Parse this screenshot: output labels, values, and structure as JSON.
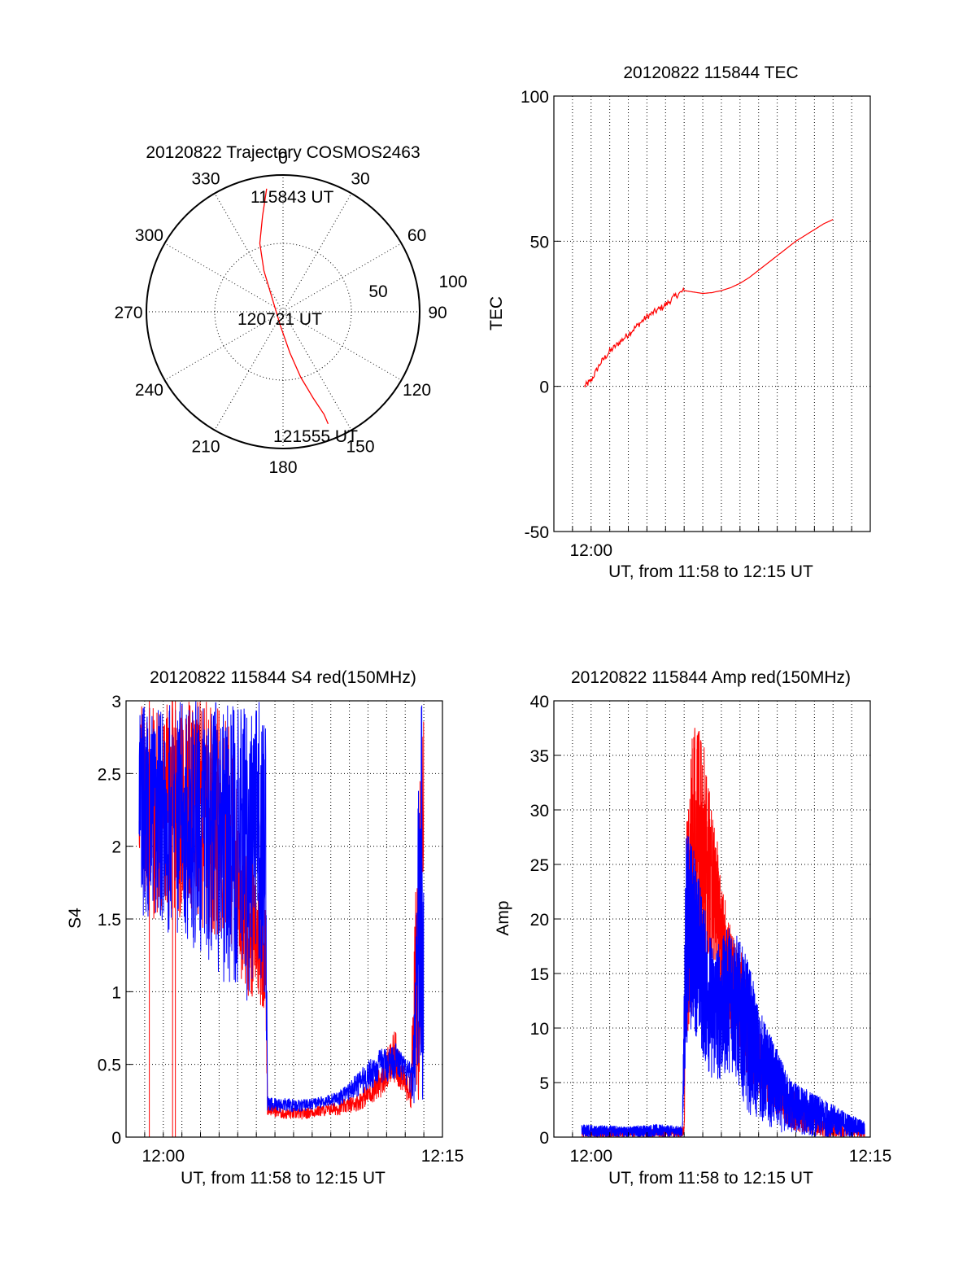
{
  "colors": {
    "red": "#ff0000",
    "blue": "#0000ff",
    "axis": "#000000"
  },
  "chart_data": [
    {
      "type": "polar",
      "title": "20120822 Trajectory COSMOS2463",
      "azimuth_labels": [
        "0",
        "30",
        "60",
        "90",
        "120",
        "150",
        "180",
        "210",
        "240",
        "270",
        "300",
        "330"
      ],
      "ring_labels": [
        "50",
        "100"
      ],
      "rlim": [
        0,
        100
      ],
      "series": [
        {
          "color": "#ff0000",
          "points": [
            [
              -12,
              90
            ],
            [
              -15,
              70
            ],
            [
              -17,
              50
            ],
            [
              -14,
              30
            ],
            [
              -8,
              10
            ],
            [
              -2,
              -10
            ],
            [
              5,
              -30
            ],
            [
              13,
              -48
            ],
            [
              22,
              -63
            ],
            [
              30,
              -75
            ],
            [
              33,
              -82
            ]
          ]
        }
      ],
      "annotations": [
        {
          "text": "115843 UT",
          "az": 10,
          "r": 90
        },
        {
          "text": "120721 UT",
          "az": 0,
          "r": 0
        },
        {
          "text": "121555 UT",
          "az": 170,
          "r": 92
        }
      ]
    },
    {
      "type": "line",
      "title": "20120822 115844 TEC",
      "ylabel": "TEC",
      "xlabel": "UT, from 11:58 to 12:15 UT",
      "xlim": [
        0,
        17
      ],
      "ylim": [
        -50,
        100
      ],
      "yticks": [
        "-50",
        "0",
        "50",
        "100"
      ],
      "xtick_labels": [
        {
          "x": 2,
          "label": "12:00"
        }
      ],
      "series": [
        {
          "color": "#ff0000",
          "points": [
            [
              1.65,
              0
            ],
            [
              2,
              2
            ],
            [
              2.5,
              8
            ],
            [
              3,
              12
            ],
            [
              3.5,
              15
            ],
            [
              4,
              18
            ],
            [
              4.5,
              21
            ],
            [
              5,
              24
            ],
            [
              5.5,
              26
            ],
            [
              6,
              28
            ],
            [
              6.5,
              31
            ],
            [
              7,
              33
            ],
            [
              7.5,
              32.5
            ],
            [
              8,
              32
            ],
            [
              8.5,
              32.3
            ],
            [
              9,
              33
            ],
            [
              9.5,
              34
            ],
            [
              10,
              35.5
            ],
            [
              10.5,
              37.5
            ],
            [
              11,
              40
            ],
            [
              11.5,
              42.5
            ],
            [
              12,
              45
            ],
            [
              12.5,
              47.5
            ],
            [
              13,
              50
            ],
            [
              13.5,
              52
            ],
            [
              14,
              54
            ],
            [
              14.5,
              56
            ],
            [
              15,
              57.5
            ]
          ]
        }
      ]
    },
    {
      "type": "line",
      "title": "20120822 115844 S4 red(150MHz)",
      "ylabel": "S4",
      "xlabel": "UT, from 11:58 to 12:15 UT",
      "xlim": [
        0,
        17
      ],
      "ylim": [
        0,
        3
      ],
      "yticks": [
        "0",
        "0.5",
        "1",
        "1.5",
        "2",
        "2.5",
        "3"
      ],
      "xtick_labels": [
        {
          "x": 2,
          "label": "12:00"
        },
        {
          "x": 17,
          "label": "12:15"
        }
      ],
      "series": [
        {
          "color": "#ff0000",
          "envelope": [
            [
              0.7,
              1.8,
              3
            ],
            [
              1.5,
              1.4,
              3
            ],
            [
              2.5,
              1.5,
              3
            ],
            [
              3.5,
              1.5,
              3
            ],
            [
              4.5,
              1.4,
              3
            ],
            [
              5.5,
              1.3,
              2.9
            ],
            [
              6.2,
              1.0,
              2.2
            ],
            [
              7.0,
              0.9,
              1.8
            ],
            [
              7.5,
              0.85,
              1.6
            ],
            [
              7.6,
              0.15,
              0.25
            ],
            [
              8.5,
              0.12,
              0.2
            ],
            [
              9.5,
              0.12,
              0.2
            ],
            [
              10.5,
              0.14,
              0.22
            ],
            [
              11.5,
              0.15,
              0.25
            ],
            [
              12.5,
              0.18,
              0.3
            ],
            [
              13.5,
              0.25,
              0.45
            ],
            [
              14.5,
              0.35,
              0.75
            ],
            [
              14.9,
              0.28,
              0.5
            ],
            [
              15.3,
              0.2,
              0.4
            ],
            [
              15.8,
              0.2,
              3
            ],
            [
              16.0,
              2.0,
              3
            ]
          ]
        },
        {
          "color": "#0000ff",
          "envelope": [
            [
              0.7,
              1.5,
              3
            ],
            [
              1.5,
              1.4,
              3
            ],
            [
              2.5,
              1.4,
              3
            ],
            [
              3.5,
              1.3,
              3
            ],
            [
              4.5,
              1.2,
              3
            ],
            [
              5.5,
              1.0,
              3
            ],
            [
              6.5,
              0.9,
              3
            ],
            [
              7.5,
              0.9,
              3
            ],
            [
              7.6,
              0.17,
              0.28
            ],
            [
              8.5,
              0.17,
              0.27
            ],
            [
              9.5,
              0.17,
              0.26
            ],
            [
              10.5,
              0.2,
              0.28
            ],
            [
              11.5,
              0.22,
              0.32
            ],
            [
              12.5,
              0.28,
              0.45
            ],
            [
              13.5,
              0.35,
              0.6
            ],
            [
              14.5,
              0.4,
              0.65
            ],
            [
              15.0,
              0.35,
              0.55
            ],
            [
              15.4,
              0.25,
              0.5
            ],
            [
              15.8,
              0.1,
              3
            ],
            [
              16.0,
              0.0,
              3
            ]
          ]
        }
      ]
    },
    {
      "type": "line",
      "title": "20120822 115844 Amp red(150MHz)",
      "ylabel": "Amp",
      "xlabel": "UT, from 11:58 to 12:15 UT",
      "xlim": [
        0,
        17
      ],
      "ylim": [
        0,
        40
      ],
      "yticks": [
        "0",
        "5",
        "10",
        "15",
        "20",
        "25",
        "30",
        "35",
        "40"
      ],
      "xtick_labels": [
        {
          "x": 2,
          "label": "12:00"
        },
        {
          "x": 17,
          "label": "12:15"
        }
      ],
      "series": [
        {
          "color": "#ff0000",
          "envelope": [
            [
              1.5,
              0,
              0.8
            ],
            [
              6.5,
              0,
              0.8
            ],
            [
              7.0,
              0,
              1
            ],
            [
              7.1,
              8,
              30
            ],
            [
              7.5,
              12,
              38
            ],
            [
              8.0,
              15,
              37
            ],
            [
              8.5,
              16,
              30
            ],
            [
              9.0,
              12,
              25
            ],
            [
              9.5,
              9,
              19
            ],
            [
              10.0,
              8,
              18
            ],
            [
              10.5,
              5,
              12
            ],
            [
              11.0,
              4,
              10
            ],
            [
              11.5,
              3,
              8
            ],
            [
              12.0,
              2,
              6
            ],
            [
              12.5,
              1,
              5
            ],
            [
              13.0,
              0.5,
              4
            ],
            [
              13.5,
              0.3,
              3
            ],
            [
              14.5,
              0,
              1.5
            ],
            [
              16.7,
              0,
              1
            ]
          ]
        },
        {
          "color": "#0000ff",
          "envelope": [
            [
              1.5,
              0,
              1.2
            ],
            [
              4.0,
              0,
              1
            ],
            [
              5.5,
              0,
              1.2
            ],
            [
              6.9,
              0,
              1
            ],
            [
              7.1,
              8,
              28
            ],
            [
              7.5,
              10,
              27
            ],
            [
              8.0,
              7,
              22
            ],
            [
              8.5,
              5,
              18
            ],
            [
              9.0,
              5,
              18
            ],
            [
              9.5,
              6,
              20
            ],
            [
              10.0,
              4,
              18
            ],
            [
              10.5,
              2,
              16
            ],
            [
              11.0,
              1.5,
              12
            ],
            [
              11.5,
              1,
              10
            ],
            [
              12.0,
              0.5,
              8
            ],
            [
              12.5,
              0.3,
              6
            ],
            [
              13.0,
              0.2,
              5
            ],
            [
              14.0,
              0,
              4
            ],
            [
              15.0,
              0,
              3
            ],
            [
              16.0,
              0,
              2
            ],
            [
              16.7,
              0,
              1.5
            ]
          ]
        }
      ]
    }
  ]
}
